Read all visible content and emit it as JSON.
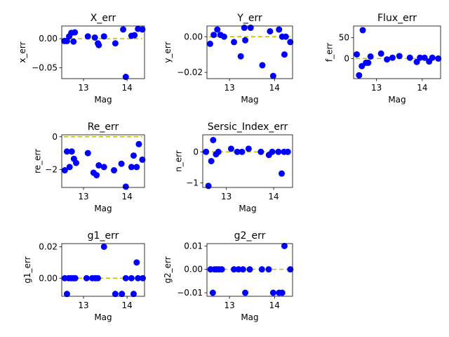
{
  "chart_data": [
    {
      "type": "scatter",
      "title": "X_err",
      "xlabel": "Mag",
      "ylabel": "x_err",
      "xlim": [
        12.5,
        14.4
      ],
      "ylim": [
        -0.069,
        0.022
      ],
      "xticks": [
        13,
        14
      ],
      "xtick_labels": [
        "13",
        "14"
      ],
      "yticks": [
        0.0,
        -0.05
      ],
      "ytick_labels": [
        "0.00",
        "−0.05"
      ],
      "reference_line": 0,
      "points": [
        [
          12.56,
          -0.004
        ],
        [
          12.62,
          -0.004
        ],
        [
          12.67,
          0.004
        ],
        [
          12.72,
          0.01
        ],
        [
          12.77,
          -0.005
        ],
        [
          12.8,
          0.011
        ],
        [
          13.1,
          0.004
        ],
        [
          13.26,
          0.002
        ],
        [
          13.33,
          -0.008
        ],
        [
          13.35,
          -0.011
        ],
        [
          13.47,
          0.004
        ],
        [
          13.73,
          -0.008
        ],
        [
          13.91,
          0.016
        ],
        [
          13.97,
          -0.066
        ],
        [
          14.1,
          0.005
        ],
        [
          14.17,
          0.006
        ],
        [
          14.25,
          0.017
        ],
        [
          14.35,
          0.016
        ]
      ]
    },
    {
      "type": "scatter",
      "title": "Y_err",
      "xlabel": "Mag",
      "ylabel": "y_err",
      "xlim": [
        12.5,
        14.4
      ],
      "ylim": [
        -0.0235,
        0.006
      ],
      "xticks": [
        13,
        14
      ],
      "xtick_labels": [
        "13",
        "14"
      ],
      "yticks": [
        0.0,
        -0.02
      ],
      "ytick_labels": [
        "0.00",
        "−0.02"
      ],
      "reference_line": 0,
      "points": [
        [
          12.57,
          -0.004
        ],
        [
          12.65,
          0.001
        ],
        [
          12.73,
          0.004
        ],
        [
          12.8,
          0.001
        ],
        [
          12.88,
          0.0
        ],
        [
          13.1,
          -0.003
        ],
        [
          13.25,
          -0.011
        ],
        [
          13.33,
          0.005
        ],
        [
          13.35,
          -0.002
        ],
        [
          13.47,
          0.005
        ],
        [
          13.73,
          -0.016
        ],
        [
          13.9,
          0.003
        ],
        [
          13.97,
          -0.022
        ],
        [
          14.1,
          0.004
        ],
        [
          14.17,
          0.0
        ],
        [
          14.22,
          -0.01
        ],
        [
          14.25,
          0.0
        ],
        [
          14.35,
          -0.003
        ]
      ]
    },
    {
      "type": "scatter",
      "title": "Flux_err",
      "xlabel": "Mag",
      "ylabel": "f_err",
      "xlim": [
        12.5,
        14.4
      ],
      "ylim": [
        -48,
        78
      ],
      "xticks": [
        13,
        14
      ],
      "xtick_labels": [
        "13",
        "14"
      ],
      "yticks": [
        50,
        0
      ],
      "ytick_labels": [
        "50",
        "0"
      ],
      "reference_line": 0,
      "points": [
        [
          12.57,
          10
        ],
        [
          12.62,
          -40
        ],
        [
          12.68,
          -18
        ],
        [
          12.7,
          68
        ],
        [
          12.77,
          -10
        ],
        [
          12.82,
          -10
        ],
        [
          12.87,
          5
        ],
        [
          13.1,
          12
        ],
        [
          13.23,
          -2
        ],
        [
          13.35,
          2
        ],
        [
          13.5,
          6
        ],
        [
          13.73,
          2
        ],
        [
          13.88,
          -8
        ],
        [
          13.95,
          2
        ],
        [
          14.05,
          2
        ],
        [
          14.15,
          -7
        ],
        [
          14.22,
          2
        ],
        [
          14.35,
          0
        ]
      ]
    },
    {
      "type": "scatter",
      "title": "Re_err",
      "xlabel": "Mag",
      "ylabel": "re_err",
      "xlim": [
        12.5,
        14.4
      ],
      "ylim": [
        -3.1,
        0.12
      ],
      "xticks": [
        13,
        14
      ],
      "xtick_labels": [
        "13",
        "14"
      ],
      "yticks": [
        0,
        -2
      ],
      "ytick_labels": [
        "0",
        "−2"
      ],
      "reference_line": 0,
      "points": [
        [
          12.57,
          -2.05
        ],
        [
          12.62,
          -0.9
        ],
        [
          12.68,
          -1.85
        ],
        [
          12.73,
          -0.9
        ],
        [
          12.78,
          -1.35
        ],
        [
          12.83,
          -1.6
        ],
        [
          13.1,
          -1.0
        ],
        [
          13.23,
          -2.2
        ],
        [
          13.3,
          -2.35
        ],
        [
          13.35,
          -1.75
        ],
        [
          13.47,
          -1.85
        ],
        [
          13.7,
          -2.05
        ],
        [
          13.87,
          -1.65
        ],
        [
          13.97,
          -3.05
        ],
        [
          14.1,
          -1.85
        ],
        [
          14.15,
          -1.15
        ],
        [
          14.22,
          -1.85
        ],
        [
          14.27,
          -0.45
        ],
        [
          14.35,
          -1.4
        ]
      ]
    },
    {
      "type": "scatter",
      "title": "Sersic_Index_err",
      "xlabel": "Mag",
      "ylabel": "n_err",
      "xlim": [
        12.5,
        14.4
      ],
      "ylim": [
        -1.15,
        0.55
      ],
      "xticks": [
        13,
        14
      ],
      "xtick_labels": [
        "13",
        "14"
      ],
      "yticks": [
        0,
        -1
      ],
      "ytick_labels": [
        "0",
        "−1"
      ],
      "reference_line": 0,
      "points": [
        [
          12.57,
          0.0
        ],
        [
          12.62,
          -1.1
        ],
        [
          12.68,
          -0.3
        ],
        [
          12.72,
          0.38
        ],
        [
          12.78,
          -0.08
        ],
        [
          12.83,
          0.0
        ],
        [
          13.1,
          0.1
        ],
        [
          13.23,
          0.0
        ],
        [
          13.33,
          0.0
        ],
        [
          13.47,
          0.1
        ],
        [
          13.73,
          0.0
        ],
        [
          13.9,
          -0.1
        ],
        [
          13.97,
          0.0
        ],
        [
          14.1,
          0.0
        ],
        [
          14.17,
          -0.7
        ],
        [
          14.22,
          0.0
        ],
        [
          14.3,
          0.0
        ]
      ]
    },
    {
      "type": "scatter",
      "title": "g1_err",
      "xlabel": "Mag",
      "ylabel": "g1_err",
      "xlim": [
        12.5,
        14.4
      ],
      "ylim": [
        -0.0115,
        0.022
      ],
      "xticks": [
        13,
        14
      ],
      "xtick_labels": [
        "13",
        "14"
      ],
      "yticks": [
        0.02,
        0.0
      ],
      "ytick_labels": [
        "0.02",
        "0.00"
      ],
      "reference_line": 0,
      "points": [
        [
          12.57,
          0.0
        ],
        [
          12.62,
          -0.01
        ],
        [
          12.66,
          0.0
        ],
        [
          12.72,
          0.0
        ],
        [
          12.77,
          0.0
        ],
        [
          12.81,
          0.0
        ],
        [
          13.07,
          0.0
        ],
        [
          13.2,
          0.0
        ],
        [
          13.27,
          0.0
        ],
        [
          13.33,
          0.0
        ],
        [
          13.47,
          0.02
        ],
        [
          13.73,
          -0.01
        ],
        [
          13.88,
          -0.01
        ],
        [
          13.97,
          0.0
        ],
        [
          14.1,
          0.0
        ],
        [
          14.15,
          -0.01
        ],
        [
          14.22,
          0.01
        ],
        [
          14.25,
          0.0
        ],
        [
          14.36,
          0.0
        ]
      ]
    },
    {
      "type": "scatter",
      "title": "g2_err",
      "xlabel": "Mag",
      "ylabel": "g2_err",
      "xlim": [
        12.5,
        14.4
      ],
      "ylim": [
        -0.0115,
        0.011
      ],
      "xticks": [
        13,
        14
      ],
      "xtick_labels": [
        "13",
        "14"
      ],
      "yticks": [
        0.01,
        0.0,
        -0.01
      ],
      "ytick_labels": [
        "0.01",
        "0.00",
        "−0.01"
      ],
      "reference_line": 0,
      "points": [
        [
          12.58,
          0.0
        ],
        [
          12.63,
          -0.01
        ],
        [
          12.67,
          0.0
        ],
        [
          12.72,
          0.0
        ],
        [
          12.77,
          0.0
        ],
        [
          12.83,
          0.0
        ],
        [
          13.1,
          0.0
        ],
        [
          13.2,
          0.0
        ],
        [
          13.3,
          0.0
        ],
        [
          13.35,
          -0.01
        ],
        [
          13.45,
          0.0
        ],
        [
          13.72,
          0.0
        ],
        [
          13.87,
          0.0
        ],
        [
          13.97,
          -0.01
        ],
        [
          14.1,
          -0.01
        ],
        [
          14.17,
          -0.01
        ],
        [
          14.22,
          0.01
        ],
        [
          14.35,
          0.0
        ]
      ]
    }
  ]
}
